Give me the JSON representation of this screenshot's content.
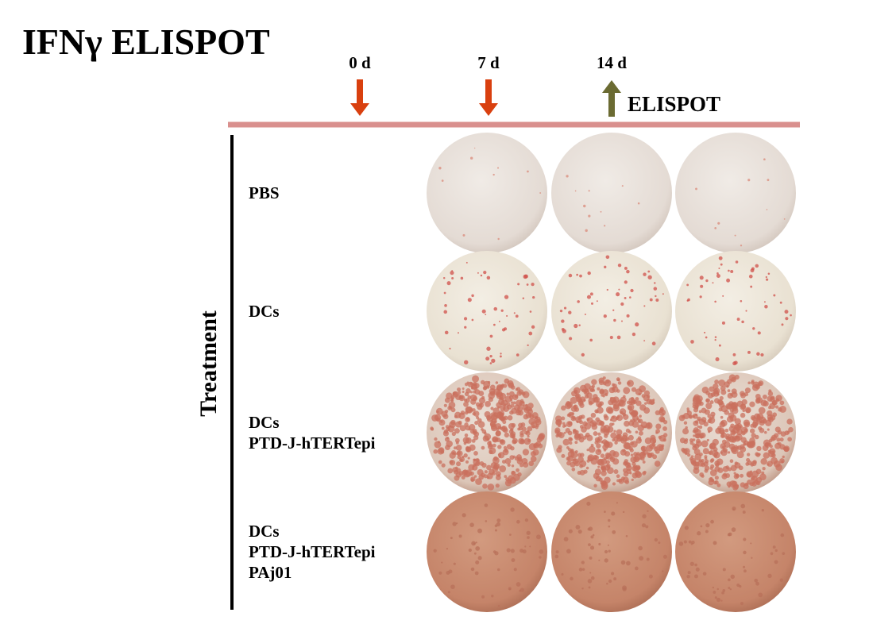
{
  "title": "IFNγ ELISPOT",
  "timeline": {
    "labels": [
      "0 d",
      "7 d",
      "14 d"
    ],
    "readout": "ELISPOT"
  },
  "axis_label": "Treatment",
  "rows": [
    {
      "lines": [
        "PBS"
      ]
    },
    {
      "lines": [
        "DCs"
      ]
    },
    {
      "lines": [
        "DCs",
        "PTD-J-hTERTepi"
      ]
    },
    {
      "lines": [
        "DCs",
        "PTD-J-hTERTepi",
        "PAj01"
      ]
    }
  ]
}
